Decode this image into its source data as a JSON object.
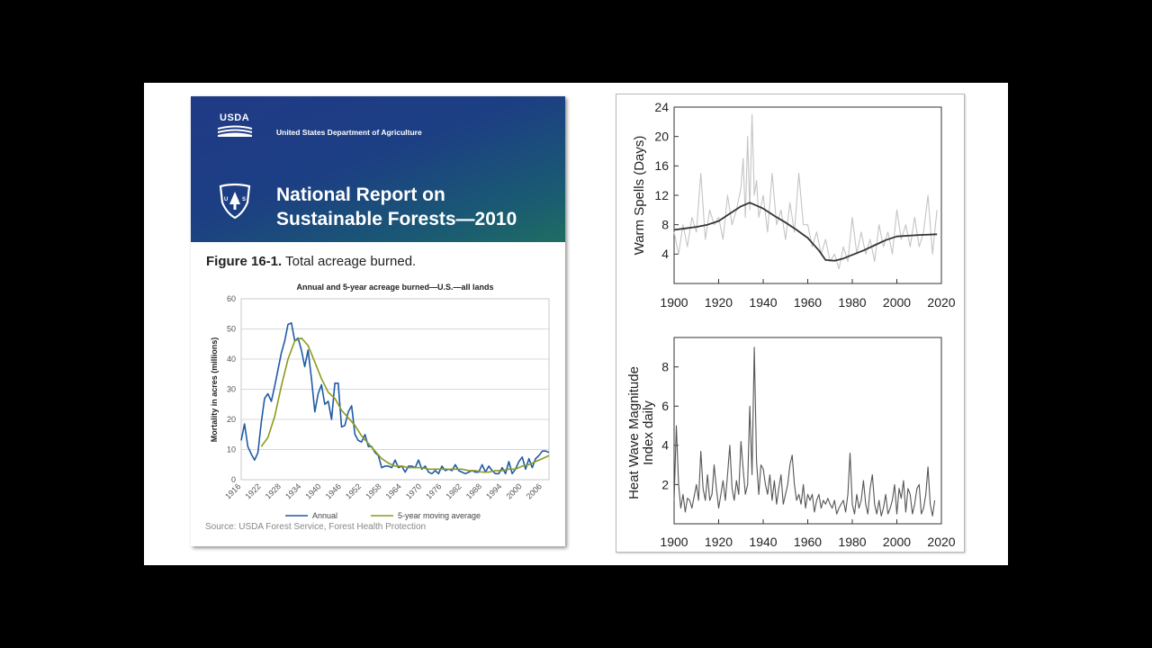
{
  "report": {
    "agency_short": "USDA",
    "agency": "United States Department of Agriculture",
    "title_line1": "National Report on",
    "title_line2": "Sustainable Forests—2010",
    "figure_label": "Figure 16-1.",
    "figure_caption": "Total acreage burned.",
    "source": "Source: USDA Forest Service, Forest Health Protection"
  },
  "chart_data": [
    {
      "type": "line",
      "title": "Annual and 5-year acreage burned—U.S.—all lands",
      "xlabel": "",
      "ylabel": "Mortality in acres (millions)",
      "xlim": [
        1916,
        2008
      ],
      "ylim": [
        0,
        60
      ],
      "yticks": [
        0,
        10,
        20,
        30,
        40,
        50,
        60
      ],
      "xticks": [
        1916,
        1922,
        1928,
        1934,
        1940,
        1946,
        1952,
        1958,
        1964,
        1970,
        1976,
        1982,
        1988,
        1994,
        2000,
        2006
      ],
      "grid": true,
      "legend": "bottom",
      "series": [
        {
          "name": "Annual",
          "color": "#1f5aa6",
          "x": [
            1916,
            1917,
            1918,
            1919,
            1920,
            1921,
            1922,
            1923,
            1924,
            1925,
            1926,
            1927,
            1928,
            1929,
            1930,
            1931,
            1932,
            1933,
            1934,
            1935,
            1936,
            1937,
            1938,
            1939,
            1940,
            1941,
            1942,
            1943,
            1944,
            1945,
            1946,
            1947,
            1948,
            1949,
            1950,
            1951,
            1952,
            1953,
            1954,
            1955,
            1956,
            1957,
            1958,
            1959,
            1960,
            1961,
            1962,
            1963,
            1964,
            1965,
            1966,
            1967,
            1968,
            1969,
            1970,
            1971,
            1972,
            1973,
            1974,
            1975,
            1976,
            1977,
            1978,
            1979,
            1980,
            1981,
            1982,
            1983,
            1984,
            1985,
            1986,
            1987,
            1988,
            1989,
            1990,
            1991,
            1992,
            1993,
            1994,
            1995,
            1996,
            1997,
            1998,
            1999,
            2000,
            2001,
            2002,
            2003,
            2004,
            2005,
            2006,
            2007,
            2008
          ],
          "values": [
            13,
            18.5,
            11,
            8.5,
            6.5,
            9,
            19,
            27,
            28.5,
            26,
            31,
            36.5,
            42,
            46,
            51.5,
            52,
            46,
            47,
            43,
            37.5,
            43,
            33.5,
            22.5,
            28.5,
            31.5,
            25,
            26,
            20,
            32,
            32,
            17.5,
            18,
            22.5,
            24.5,
            15,
            13,
            12.5,
            15,
            11,
            11,
            9,
            8,
            4,
            4.5,
            4.5,
            4,
            6.5,
            4,
            4.5,
            2.5,
            4.5,
            4.5,
            4,
            6.5,
            3.5,
            4.5,
            2.5,
            2,
            3,
            2,
            4.5,
            3,
            3.5,
            3,
            5,
            3,
            2.5,
            2,
            2.5,
            3,
            2.5,
            2.5,
            5,
            2.5,
            4.5,
            3,
            2,
            2,
            4,
            2,
            6,
            2,
            3.5,
            6,
            7.5,
            3.5,
            7,
            4,
            7,
            8,
            9.5,
            9.5,
            9
          ]
        },
        {
          "name": "5-year moving average",
          "color": "#8c9a1e",
          "x": [
            1922,
            1924,
            1926,
            1928,
            1930,
            1932,
            1934,
            1936,
            1938,
            1940,
            1942,
            1944,
            1946,
            1948,
            1950,
            1952,
            1954,
            1956,
            1958,
            1960,
            1962,
            1964,
            1966,
            1968,
            1970,
            1972,
            1974,
            1976,
            1978,
            1980,
            1982,
            1984,
            1986,
            1988,
            1990,
            1992,
            1994,
            1996,
            1998,
            2000,
            2002,
            2004,
            2006,
            2008
          ],
          "values": [
            11,
            14,
            21,
            31,
            40,
            46,
            47,
            44.5,
            39,
            33.5,
            29,
            27,
            23,
            20.5,
            18,
            14.5,
            12,
            9.5,
            7,
            5.5,
            4.5,
            4.5,
            4,
            4,
            4,
            3.5,
            3.5,
            3.5,
            3.5,
            3.5,
            3.5,
            3,
            3,
            2.5,
            2.5,
            3,
            3,
            3.5,
            3.5,
            4.5,
            5,
            6,
            7,
            8
          ]
        }
      ]
    },
    {
      "type": "line",
      "title": "",
      "xlabel": "",
      "ylabel": "Warm Spells (Days)",
      "xlim": [
        1900,
        2020
      ],
      "ylim": [
        0,
        24
      ],
      "yticks": [
        4,
        8,
        12,
        16,
        20,
        24
      ],
      "xticks": [
        1900,
        1920,
        1940,
        1960,
        1980,
        2000,
        2020
      ],
      "grid": false,
      "series": [
        {
          "color": "#c4c4c4",
          "x": [
            1900,
            1902,
            1904,
            1906,
            1908,
            1910,
            1912,
            1914,
            1916,
            1918,
            1920,
            1922,
            1924,
            1926,
            1928,
            1930,
            1931,
            1932,
            1933,
            1934,
            1935,
            1936,
            1937,
            1938,
            1940,
            1942,
            1944,
            1946,
            1948,
            1950,
            1952,
            1954,
            1956,
            1958,
            1960,
            1962,
            1964,
            1966,
            1968,
            1970,
            1972,
            1974,
            1976,
            1978,
            1980,
            1982,
            1984,
            1986,
            1988,
            1990,
            1992,
            1994,
            1996,
            1998,
            2000,
            2002,
            2004,
            2006,
            2008,
            2010,
            2012,
            2014,
            2016,
            2018
          ],
          "values": [
            7,
            4,
            8,
            5,
            9,
            7,
            15,
            6,
            10,
            8,
            9,
            6,
            12,
            8,
            10,
            13,
            17,
            9,
            20,
            10,
            23,
            12,
            14,
            9,
            12,
            7,
            15,
            8,
            10,
            6,
            11,
            7,
            15,
            8,
            8,
            5,
            7,
            4,
            6,
            3,
            4,
            2,
            5,
            3,
            9,
            4,
            7,
            4,
            6,
            3,
            8,
            5,
            7,
            4,
            10,
            6,
            8,
            5,
            9,
            5,
            7,
            12,
            4,
            10
          ]
        },
        {
          "color": "#333333",
          "x": [
            1900,
            1905,
            1910,
            1915,
            1920,
            1925,
            1930,
            1934,
            1940,
            1945,
            1950,
            1955,
            1960,
            1965,
            1968,
            1972,
            1976,
            1980,
            1985,
            1990,
            1995,
            2000,
            2005,
            2010,
            2018
          ],
          "values": [
            7.3,
            7.5,
            7.7,
            8,
            8.5,
            9.5,
            10.5,
            11,
            10.2,
            9.2,
            8.3,
            7.3,
            6.2,
            4.5,
            3.2,
            3.1,
            3.4,
            3.9,
            4.5,
            5.2,
            5.9,
            6.4,
            6.5,
            6.6,
            6.7
          ]
        }
      ]
    },
    {
      "type": "line",
      "title": "",
      "xlabel": "",
      "ylabel": "Heat Wave Magnitude Index daily",
      "xlim": [
        1900,
        2020
      ],
      "ylim": [
        0,
        9.5
      ],
      "yticks": [
        2,
        4,
        6,
        8
      ],
      "xticks": [
        1900,
        1920,
        1940,
        1960,
        1980,
        2000,
        2020
      ],
      "grid": false,
      "series": [
        {
          "color": "#555555",
          "x": [
            1900,
            1901,
            1902,
            1903,
            1904,
            1905,
            1906,
            1907,
            1908,
            1909,
            1910,
            1911,
            1912,
            1913,
            1914,
            1915,
            1916,
            1917,
            1918,
            1919,
            1920,
            1921,
            1922,
            1923,
            1924,
            1925,
            1926,
            1927,
            1928,
            1929,
            1930,
            1931,
            1932,
            1933,
            1934,
            1935,
            1936,
            1937,
            1938,
            1939,
            1940,
            1941,
            1942,
            1943,
            1944,
            1945,
            1946,
            1947,
            1948,
            1949,
            1950,
            1951,
            1952,
            1953,
            1954,
            1955,
            1956,
            1957,
            1958,
            1959,
            1960,
            1961,
            1962,
            1963,
            1964,
            1965,
            1966,
            1967,
            1968,
            1969,
            1970,
            1971,
            1972,
            1973,
            1974,
            1975,
            1976,
            1977,
            1978,
            1979,
            1980,
            1981,
            1982,
            1983,
            1984,
            1985,
            1986,
            1987,
            1988,
            1989,
            1990,
            1991,
            1992,
            1993,
            1994,
            1995,
            1996,
            1997,
            1998,
            1999,
            2000,
            2001,
            2002,
            2003,
            2004,
            2005,
            2006,
            2007,
            2008,
            2009,
            2010,
            2011,
            2012,
            2013,
            2014,
            2015,
            2016,
            2017
          ],
          "values": [
            1.2,
            5,
            2,
            0.8,
            1.5,
            0.6,
            1.3,
            1.2,
            0.8,
            1.4,
            2,
            1.2,
            3.7,
            1.8,
            1.2,
            2.5,
            1.2,
            1.5,
            3,
            1.8,
            0.8,
            1.5,
            2.2,
            1.2,
            2.5,
            4,
            1.8,
            1.2,
            2.2,
            1.5,
            4.2,
            2.8,
            1.5,
            2,
            6,
            2.5,
            9,
            3.2,
            1.5,
            3,
            2.8,
            2,
            1.5,
            2.5,
            1.2,
            2.2,
            1,
            1.8,
            2.5,
            1,
            1.5,
            2,
            3,
            3.5,
            2,
            1.2,
            1.5,
            1,
            2,
            0.8,
            1.5,
            1.2,
            1.5,
            0.6,
            1.2,
            1.5,
            0.8,
            1.2,
            1,
            1.3,
            1,
            0.8,
            1.2,
            0.5,
            0.8,
            1,
            1.2,
            0.6,
            1.5,
            3.6,
            1,
            0.5,
            1.5,
            0.8,
            1.2,
            2.2,
            1,
            0.5,
            1.8,
            2.5,
            1,
            0.5,
            1.2,
            0.4,
            0.8,
            1.5,
            0.5,
            0.8,
            1.2,
            2,
            0.5,
            1.8,
            1.3,
            2.2,
            0.6,
            1.8,
            1.5,
            0.5,
            1,
            1.8,
            2,
            0.5,
            0.8,
            1.5,
            2.9,
            1,
            0.4,
            1.2
          ]
        }
      ]
    }
  ]
}
